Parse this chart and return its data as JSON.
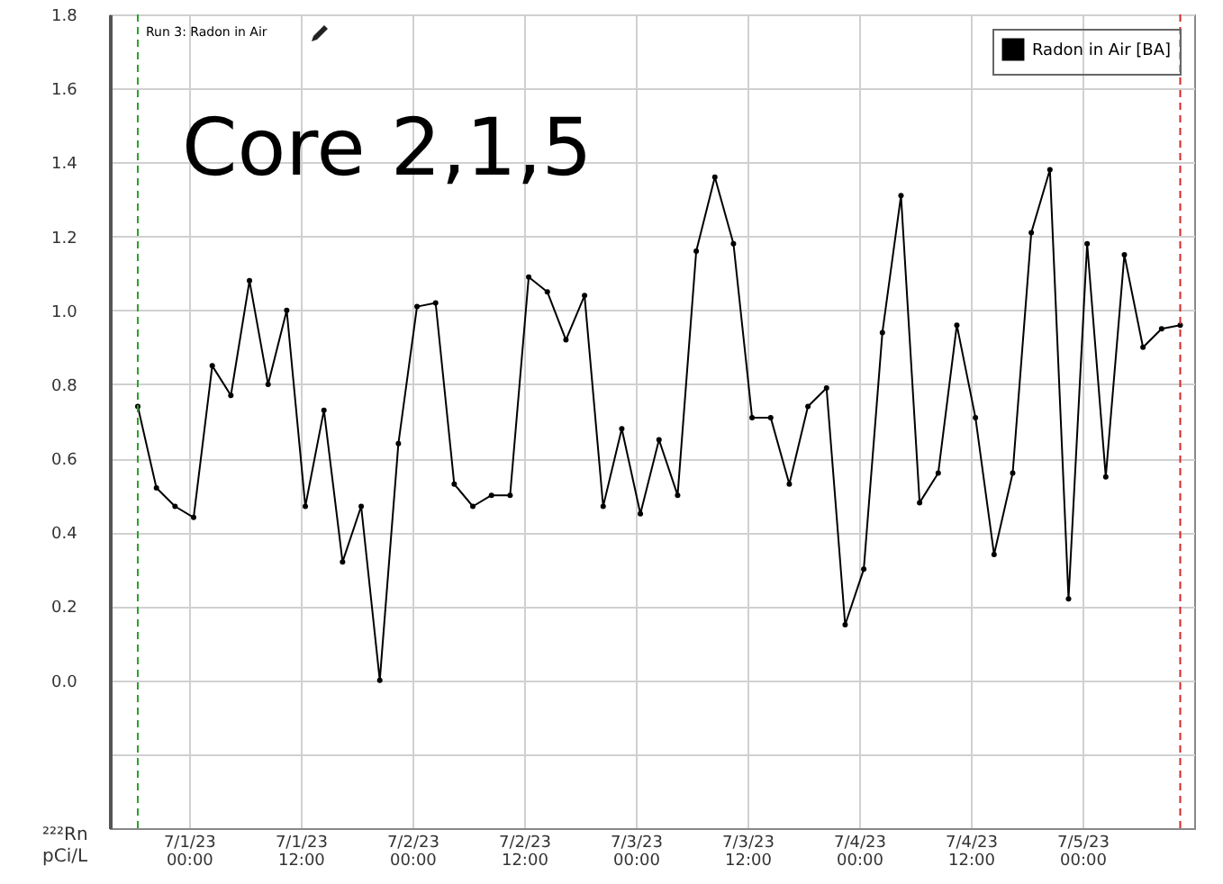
{
  "chart_data": {
    "type": "line",
    "ylabel": "²²²Rn pCi/L",
    "annotations": [
      "Run 3: Radon in Air",
      "Core 2,1,5"
    ],
    "x": [
      "--06-30T18:30",
      "--06-30T20:30",
      "--06-30T22:30",
      "--07-01T00:30",
      "--07-01T02:30",
      "--07-01T04:30",
      "--07-01T06:30",
      "--07-01T08:30",
      "--07-01T10:30",
      "--07-01T12:30",
      "--07-01T14:30",
      "--07-01T16:30",
      "--07-01T18:30",
      "--07-01T20:30",
      "--07-01T22:30",
      "--07-02T00:30",
      "--07-02T02:30",
      "--07-02T04:30",
      "--07-02T06:30",
      "--07-02T08:30",
      "--07-02T10:30",
      "--07-02T12:30",
      "--07-02T14:30",
      "--07-02T16:30",
      "--07-02T18:30",
      "--07-02T20:30",
      "--07-02T22:30",
      "--07-03T00:30",
      "--07-03T02:30",
      "--07-03T04:30",
      "--07-03T06:30",
      "--07-03T08:30",
      "--07-03T10:30",
      "--07-03T12:30",
      "--07-03T14:30",
      "--07-03T16:30",
      "--07-03T18:30",
      "--07-03T20:30",
      "--07-03T22:30",
      "--07-04T00:30",
      "--07-04T02:30",
      "--07-04T04:30",
      "--07-04T06:30",
      "--07-04T08:30",
      "--07-04T10:30",
      "--07-04T12:30",
      "--07-04T14:30",
      "--07-04T16:30",
      "--07-04T18:30",
      "--07-04T20:30",
      "--07-04T22:30",
      "--07-05T00:30",
      "--07-05T02:30",
      "--07-05T04:30",
      "--07-05T06:30",
      "--07-05T08:30",
      "--07-05T10:30"
    ],
    "series": [
      {
        "name": "Radon in Air [BA]",
        "color": "#000000",
        "values": [
          0.74,
          0.52,
          0.47,
          0.44,
          0.85,
          0.77,
          1.08,
          0.8,
          1.0,
          0.47,
          0.73,
          0.32,
          0.47,
          0.0,
          0.64,
          1.01,
          1.02,
          0.53,
          0.47,
          0.5,
          0.5,
          1.09,
          1.05,
          0.92,
          1.04,
          0.47,
          0.68,
          0.45,
          0.65,
          0.5,
          1.16,
          1.36,
          1.18,
          0.71,
          0.71,
          0.53,
          0.74,
          0.79,
          0.15,
          0.3,
          0.94,
          1.31,
          0.48,
          0.56,
          0.96,
          0.71,
          0.34,
          0.56,
          1.21,
          1.38,
          0.22,
          1.18,
          0.55,
          1.15,
          0.9,
          0.95,
          0.96
        ]
      }
    ],
    "xlim": [
      "--06-30T15:30",
      "--07-05T12:00"
    ],
    "xticks": [
      {
        "value": "--07-01T00:00",
        "label": "7/1/23 00:00"
      },
      {
        "value": "--07-01T12:00",
        "label": "7/1/23 12:00"
      },
      {
        "value": "--07-02T00:00",
        "label": "7/2/23 00:00"
      },
      {
        "value": "--07-02T12:00",
        "label": "7/2/23 12:00"
      },
      {
        "value": "--07-03T00:00",
        "label": "7/3/23 00:00"
      },
      {
        "value": "--07-03T12:00",
        "label": "7/3/23 12:00"
      },
      {
        "value": "--07-04T00:00",
        "label": "7/4/23 00:00"
      },
      {
        "value": "--07-04T12:00",
        "label": "7/4/23 12:00"
      },
      {
        "value": "--07-05T00:00",
        "label": "7/5/23 00:00"
      }
    ],
    "ylim": [
      -0.4,
      1.8
    ],
    "yticks": [
      {
        "value": -0.2,
        "label": null
      },
      {
        "value": 0,
        "label": "0.0"
      },
      {
        "value": 0.2,
        "label": "0.2"
      },
      {
        "value": 0.4,
        "label": "0.4"
      },
      {
        "value": 0.6,
        "label": "0.6"
      },
      {
        "value": 0.8,
        "label": "0.8"
      },
      {
        "value": 1,
        "label": "1.0"
      },
      {
        "value": 1.2,
        "label": "1.2"
      },
      {
        "value": 1.4,
        "label": "1.4"
      },
      {
        "value": 1.6,
        "label": "1.6"
      },
      {
        "value": 1.8,
        "label": "1.8"
      }
    ],
    "ref_lines": [
      {
        "axis": "x",
        "value": "--06-30T18:30",
        "color": "#2ca02c",
        "line_style": "dashed"
      },
      {
        "axis": "x",
        "value": "--07-05T10:30",
        "color": "#d62728",
        "line_style": "dashed"
      }
    ],
    "grid": true,
    "legend": "top right",
    "marker": "circle",
    "line_style": "solid"
  }
}
